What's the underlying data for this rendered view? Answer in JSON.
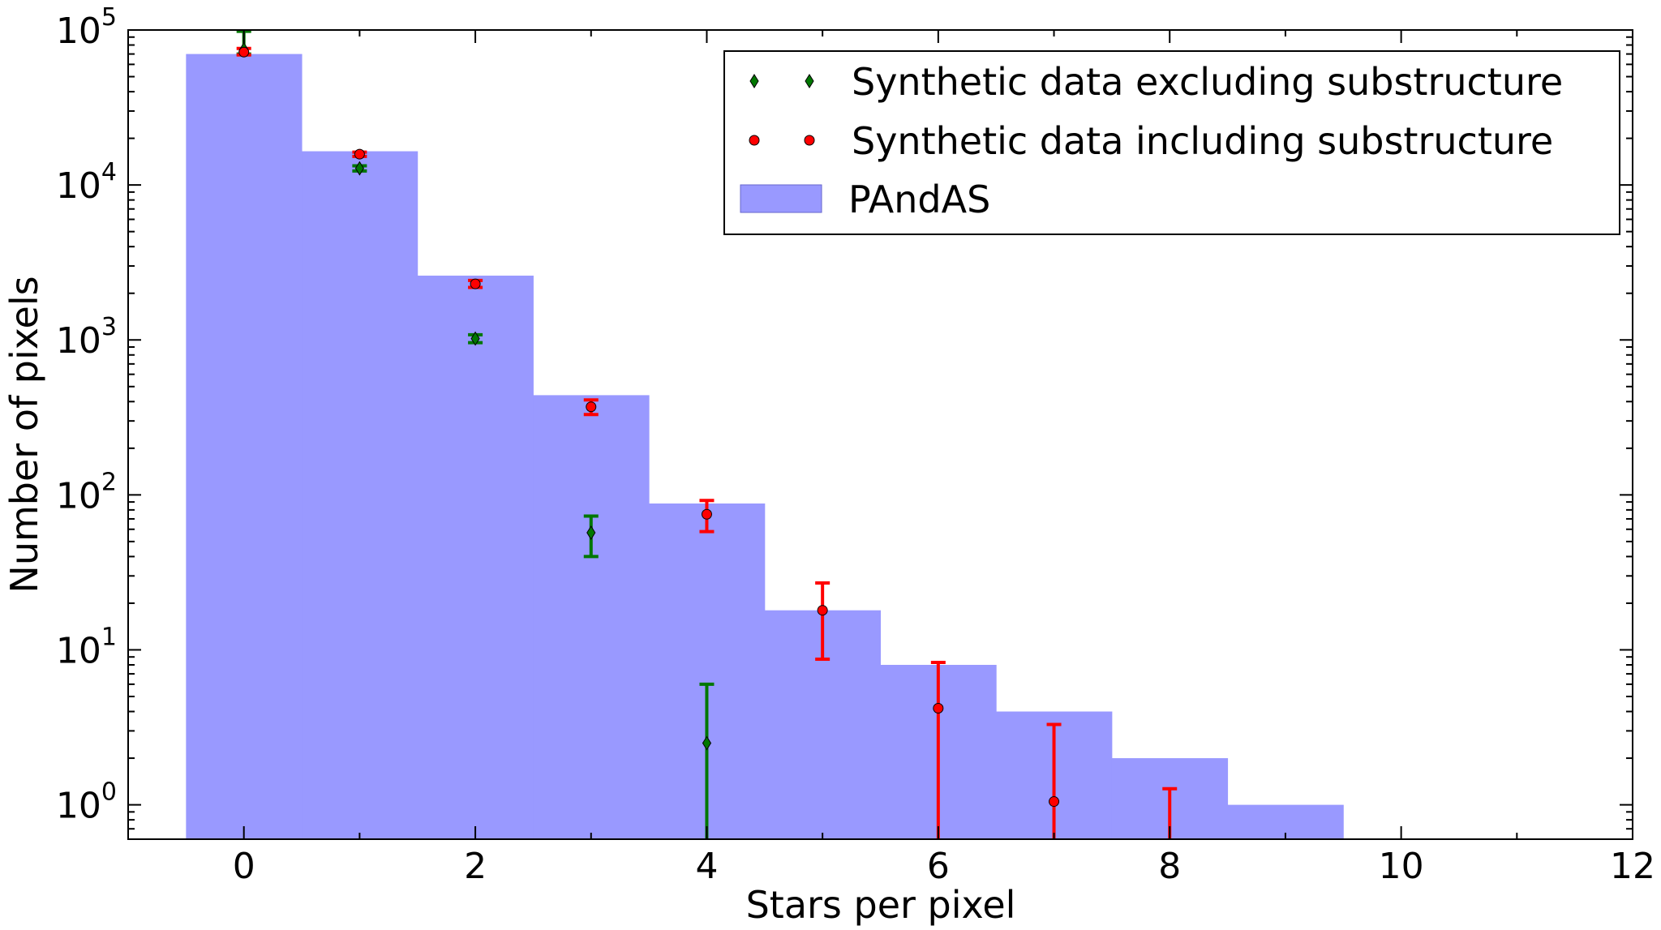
{
  "chart_data": {
    "type": "bar",
    "xlabel": "Stars per pixel",
    "ylabel": "Number of pixels",
    "yscale": "log",
    "xlim": [
      -1,
      12
    ],
    "ylim": [
      0.6,
      100000
    ],
    "x_ticks": [
      {
        "value": 0,
        "label": "0"
      },
      {
        "value": 2,
        "label": "2"
      },
      {
        "value": 4,
        "label": "4"
      },
      {
        "value": 6,
        "label": "6"
      },
      {
        "value": 8,
        "label": "8"
      },
      {
        "value": 10,
        "label": "10"
      },
      {
        "value": 12,
        "label": "12"
      }
    ],
    "y_ticks": [
      {
        "value": 1,
        "base": "10",
        "exponent": "0"
      },
      {
        "value": 10,
        "base": "10",
        "exponent": "1"
      },
      {
        "value": 100,
        "base": "10",
        "exponent": "2"
      },
      {
        "value": 1000,
        "base": "10",
        "exponent": "3"
      },
      {
        "value": 10000,
        "base": "10",
        "exponent": "4"
      },
      {
        "value": 100000,
        "base": "10",
        "exponent": "5"
      }
    ],
    "histogram": {
      "name": "PAndAS",
      "color": "#9999ff",
      "bins": [
        {
          "x": 0,
          "value": 70000
        },
        {
          "x": 1,
          "value": 16500
        },
        {
          "x": 2,
          "value": 2600
        },
        {
          "x": 3,
          "value": 440
        },
        {
          "x": 4,
          "value": 88
        },
        {
          "x": 5,
          "value": 18
        },
        {
          "x": 6,
          "value": 8
        },
        {
          "x": 7,
          "value": 4
        },
        {
          "x": 8,
          "value": 2
        },
        {
          "x": 9,
          "value": 1
        }
      ]
    },
    "series": [
      {
        "name": "Synthetic data excluding substructure",
        "color": "#007700",
        "marker": "diamond",
        "points": [
          {
            "x": 0,
            "y": 75000,
            "lo": 70000,
            "hi": 98000
          },
          {
            "x": 1,
            "y": 12800,
            "lo": 12300,
            "hi": 13300
          },
          {
            "x": 2,
            "y": 1020,
            "lo": 960,
            "hi": 1080
          },
          {
            "x": 3,
            "y": 57,
            "lo": 40,
            "hi": 73
          },
          {
            "x": 4,
            "y": 2.5,
            "lo": 0.6,
            "hi": 6
          }
        ]
      },
      {
        "name": "Synthetic data including substructure",
        "color": "#ff0000",
        "marker": "circle",
        "points": [
          {
            "x": 0,
            "y": 72000,
            "lo": 69000,
            "hi": 76000
          },
          {
            "x": 1,
            "y": 15800,
            "lo": 15300,
            "hi": 16300
          },
          {
            "x": 2,
            "y": 2300,
            "lo": 2180,
            "hi": 2420
          },
          {
            "x": 3,
            "y": 370,
            "lo": 330,
            "hi": 410
          },
          {
            "x": 4,
            "y": 75,
            "lo": 58,
            "hi": 92
          },
          {
            "x": 5,
            "y": 18,
            "lo": 8.7,
            "hi": 27
          },
          {
            "x": 6,
            "y": 4.2,
            "lo": 0.6,
            "hi": 8.3
          },
          {
            "x": 7,
            "y": 1.05,
            "lo": 0.6,
            "hi": 3.3
          },
          {
            "x": 8,
            "y": null,
            "lo": 0.6,
            "hi": 1.27
          }
        ]
      }
    ],
    "legend": {
      "position": "top-right",
      "entries": [
        {
          "label": "Synthetic data excluding substructure",
          "kind": "diamond",
          "color": "#007700"
        },
        {
          "label": "Synthetic data including substructure",
          "kind": "circle",
          "color": "#ff0000"
        },
        {
          "label": "PAndAS",
          "kind": "patch",
          "color": "#9999ff"
        }
      ]
    }
  }
}
